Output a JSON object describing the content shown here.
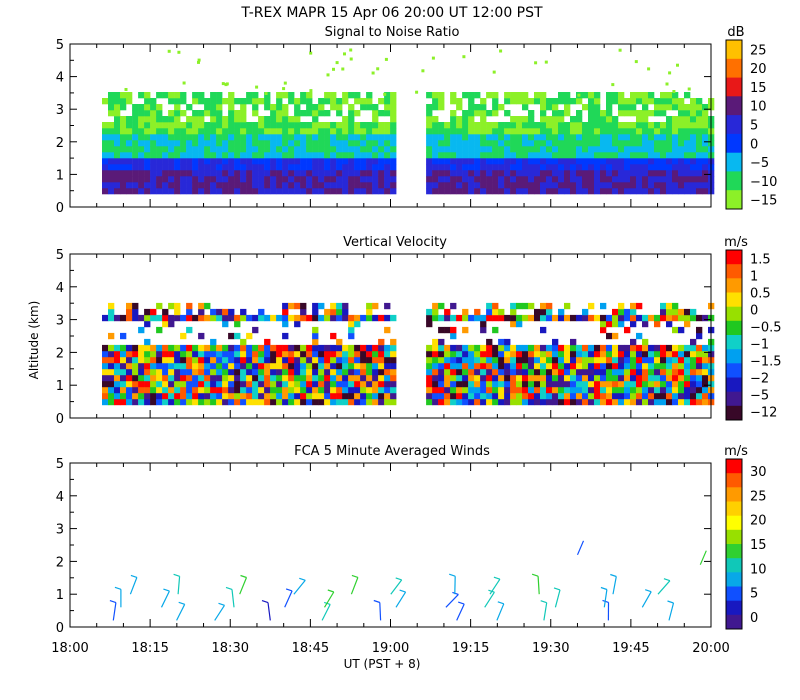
{
  "figure": {
    "title": "T-REX  MAPR 15 Apr 06  20:00 UT  12:00  PST",
    "xlabel": "UT  (PST + 8)",
    "ylabel": "Altitude (km)",
    "xticks": [
      "18:00",
      "18:15",
      "18:30",
      "18:45",
      "19:00",
      "19:15",
      "19:30",
      "19:45",
      "20:00"
    ]
  },
  "chart_data": [
    {
      "type": "heatmap",
      "title": "Signal to Noise Ratio",
      "units": "dB",
      "xlabel": "UT  (PST + 8)",
      "ylabel": "Altitude (km)",
      "xlim": [
        "18:00",
        "20:00"
      ],
      "ylim": [
        0,
        5
      ],
      "yticks": [
        "0",
        "1",
        "2",
        "3",
        "4",
        "5"
      ],
      "colorbar_labels": [
        "25",
        "20",
        "15",
        "10",
        "5",
        "0",
        "−5",
        "−10",
        "−15"
      ],
      "colors": [
        "#ffc000",
        "#ff7000",
        "#e81818",
        "#5a1a78",
        "#2828d8",
        "#0038ff",
        "#08b8f0",
        "#20d858",
        "#8cf028"
      ],
      "data_gap": [
        "19:00",
        "19:05"
      ]
    },
    {
      "type": "heatmap",
      "title": "Vertical Velocity",
      "units": "m/s",
      "xlabel": "UT  (PST + 8)",
      "ylabel": "Altitude (km)",
      "xlim": [
        "18:00",
        "20:00"
      ],
      "ylim": [
        0,
        5
      ],
      "yticks": [
        "0",
        "1",
        "2",
        "3",
        "4",
        "5"
      ],
      "colorbar_labels": [
        "1.5",
        "1",
        "0.5",
        "0",
        "−0.5",
        "−1",
        "−1.5",
        "−2",
        "−5",
        "−12"
      ],
      "colors": [
        "#ff0000",
        "#ff5a00",
        "#ff9a00",
        "#ffe000",
        "#98e000",
        "#20c820",
        "#10d0c8",
        "#00a0f0",
        "#1050ff",
        "#1818c0",
        "#401890",
        "#380828"
      ],
      "data_gap": [
        "19:00",
        "19:05"
      ]
    },
    {
      "type": "scatter",
      "title": "FCA 5 Minute Averaged Winds",
      "units": "m/s",
      "xlabel": "UT  (PST + 8)",
      "ylabel": "Altitude (km)",
      "xlim": [
        "18:00",
        "20:00"
      ],
      "ylim": [
        0,
        5
      ],
      "yticks": [
        "0",
        "1",
        "2",
        "3",
        "4",
        "5"
      ],
      "colorbar_labels": [
        "30",
        "25",
        "20",
        "15",
        "10",
        "5",
        "0"
      ],
      "colors": [
        "#ff0000",
        "#ff5a00",
        "#ff9a00",
        "#ffd000",
        "#ffff00",
        "#98e000",
        "#30d030",
        "#10c8b8",
        "#08a8e8",
        "#1050ff",
        "#1818c0",
        "#401890"
      ],
      "barb_times_min": [
        10,
        20,
        30,
        40,
        50,
        60,
        70,
        80,
        90,
        100,
        110
      ],
      "barb_altitudes_km": [
        0.2,
        0.6,
        1.0
      ],
      "wind_speeds_mps": [
        6,
        8,
        10,
        4,
        12,
        7,
        5,
        9,
        11,
        6,
        8
      ],
      "extra_barbs": [
        {
          "time_min": 95,
          "alt_km": 2.2,
          "speed": 6
        },
        {
          "time_min": 118,
          "alt_km": 1.9,
          "speed": 16
        }
      ]
    }
  ]
}
